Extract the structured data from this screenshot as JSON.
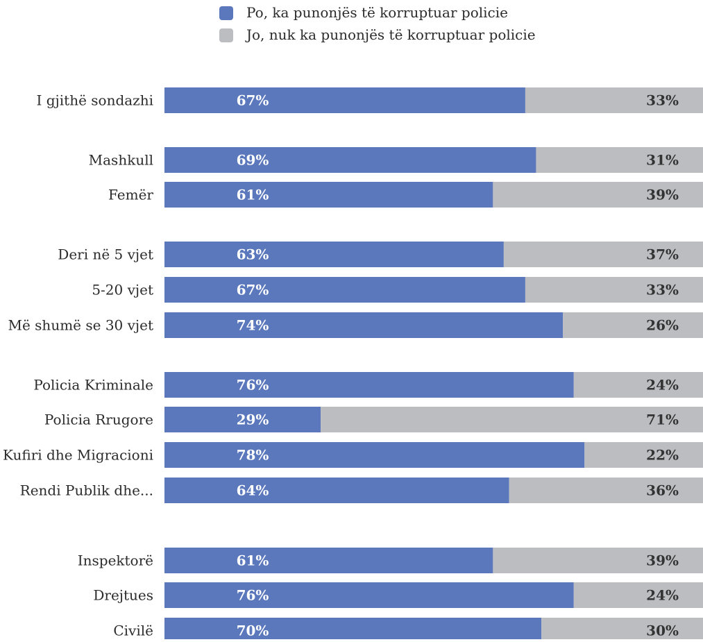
{
  "colors": {
    "yes": "#5b78bd",
    "no": "#bcbdc1"
  },
  "chart_data": {
    "type": "bar",
    "orientation": "horizontal",
    "stacked": true,
    "legend_position": "top",
    "xlim": [
      0,
      100
    ],
    "categories": [
      "I gjithë sondazhi",
      "Mashkull",
      "Femër",
      "Deri në 5 vjet",
      "5-20 vjet",
      "Më shumë se 30 vjet",
      "Policia Kriminale",
      "Policia Rrugore",
      "Kufiri dhe Migracioni",
      "Rendi Publik dhe...",
      "Inspektorë",
      "Drejtues",
      "Civilë"
    ],
    "groups": [
      [
        "I gjithë sondazhi"
      ],
      [
        "Mashkull",
        "Femër"
      ],
      [
        "Deri në 5 vjet",
        "5-20 vjet",
        "Më shumë se 30 vjet"
      ],
      [
        "Policia Kriminale",
        "Policia Rrugore",
        "Kufiri dhe Migracioni",
        "Rendi Publik dhe..."
      ],
      [
        "Inspektorë",
        "Drejtues",
        "Civilë"
      ]
    ],
    "series": [
      {
        "name": "Po, ka punonjës të korruptuar policie",
        "color": "#5b78bd",
        "values": [
          67,
          69,
          61,
          63,
          67,
          74,
          76,
          29,
          78,
          64,
          61,
          76,
          70
        ],
        "labels": [
          "67%",
          "69%",
          "61%",
          "63%",
          "67%",
          "74%",
          "76%",
          "29%",
          "78%",
          "64%",
          "61%",
          "76%",
          "70%"
        ]
      },
      {
        "name": "Jo, nuk ka punonjës të korruptuar policie",
        "color": "#bcbdc1",
        "values": [
          33,
          31,
          39,
          37,
          33,
          26,
          24,
          71,
          22,
          36,
          39,
          24,
          30
        ],
        "labels": [
          "33%",
          "31%",
          "39%",
          "37%",
          "33%",
          "26%",
          "24%",
          "71%",
          "22%",
          "36%",
          "39%",
          "24%",
          "30%"
        ]
      }
    ]
  }
}
